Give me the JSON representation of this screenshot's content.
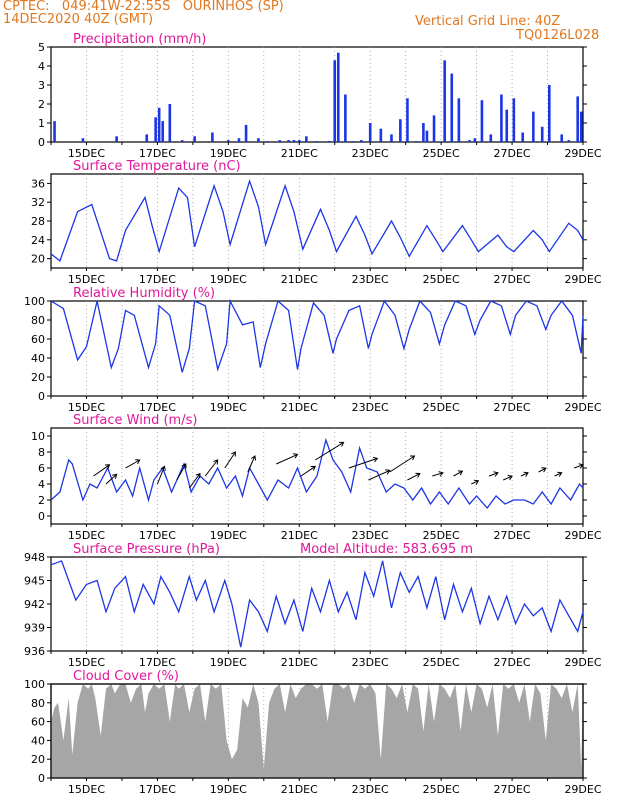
{
  "header": {
    "line1": "CPTEC:   049:41W-22:55S   OURINHOS (SP)",
    "line2": "14DEC2020 40Z (GMT)",
    "grid_note": "Vertical Grid Line: 40Z",
    "code": "TQ0126L028"
  },
  "x_ticks": [
    "15DEC",
    "17DEC",
    "19DEC",
    "21DEC",
    "23DEC",
    "25DEC",
    "27DEC",
    "29DEC"
  ],
  "colors": {
    "header": "#e07820",
    "title": "#e0189a",
    "series": "#1c36e6",
    "cloud": "#a6a6a6"
  },
  "chart_data": [
    {
      "id": "precip",
      "type": "bar",
      "title": "Precipitation (mm/h)",
      "ylim": [
        0,
        5
      ],
      "yticks": [
        "0",
        "1",
        "2",
        "3",
        "4",
        "5"
      ],
      "xlim": [
        14.0,
        29.0
      ],
      "x": [
        14.1,
        14.9,
        15.85,
        16.7,
        16.95,
        17.05,
        17.15,
        17.35,
        17.7,
        18.05,
        18.55,
        19.0,
        19.3,
        19.5,
        19.85,
        20.1,
        20.45,
        20.7,
        20.85,
        21.0,
        21.2,
        21.5,
        21.85,
        22.0,
        22.1,
        22.3,
        22.5,
        22.75,
        23.0,
        23.3,
        23.6,
        23.85,
        24.05,
        24.3,
        24.5,
        24.6,
        24.8,
        25.1,
        25.3,
        25.5,
        25.8,
        25.95,
        26.15,
        26.4,
        26.7,
        26.85,
        27.05,
        27.3,
        27.6,
        27.85,
        28.05,
        28.4,
        28.6,
        28.85,
        28.95
      ],
      "values": [
        1.1,
        0.2,
        0.3,
        0.4,
        1.3,
        1.8,
        1.1,
        2.0,
        0.1,
        0.3,
        0.5,
        0.1,
        0.2,
        0.9,
        0.2,
        0.05,
        0.1,
        0.1,
        0.1,
        0.1,
        0.3,
        0.05,
        0.05,
        4.3,
        4.7,
        2.5,
        0.05,
        0.1,
        1.0,
        0.7,
        0.4,
        1.2,
        2.3,
        0.05,
        1.0,
        0.6,
        1.4,
        4.3,
        3.6,
        2.3,
        0.1,
        0.2,
        2.2,
        0.4,
        2.5,
        1.7,
        2.3,
        0.5,
        1.6,
        0.8,
        3.0,
        0.4,
        0.1,
        2.4,
        1.6
      ]
    },
    {
      "id": "temp",
      "type": "line",
      "title": "Surface Temperature (nC)",
      "ylim": [
        18,
        38
      ],
      "yticks": [
        "20",
        "24",
        "28",
        "32",
        "36"
      ],
      "xlim": [
        14.0,
        29.0
      ],
      "x": [
        14.0,
        14.25,
        14.75,
        15.15,
        15.65,
        15.85,
        16.1,
        16.65,
        16.85,
        17.05,
        17.6,
        17.85,
        18.05,
        18.6,
        18.85,
        19.05,
        19.6,
        19.85,
        20.05,
        20.6,
        20.85,
        21.1,
        21.6,
        21.85,
        22.05,
        22.6,
        22.85,
        23.05,
        23.6,
        23.85,
        24.1,
        24.6,
        24.85,
        25.05,
        25.6,
        25.85,
        26.05,
        26.6,
        26.85,
        27.05,
        27.6,
        27.85,
        28.05,
        28.6,
        28.85,
        29.0
      ],
      "values": [
        21,
        19.5,
        30,
        31.5,
        20,
        19.5,
        26,
        33,
        27,
        21.5,
        35,
        33,
        22.5,
        35.5,
        30,
        23,
        36.5,
        31,
        23,
        35.5,
        30,
        22,
        30.5,
        26,
        21.5,
        29,
        25,
        21,
        28,
        24.5,
        20.5,
        27,
        24,
        21.5,
        27,
        24,
        21.5,
        25,
        22.5,
        21.5,
        26,
        24,
        21.5,
        27.5,
        26,
        24
      ]
    },
    {
      "id": "rh",
      "type": "line",
      "title": "Relative Humidity (%)",
      "ylim": [
        0,
        100
      ],
      "yticks": [
        "0",
        "20",
        "40",
        "60",
        "80",
        "100"
      ],
      "xlim": [
        14.0,
        29.0
      ],
      "x": [
        14.0,
        14.35,
        14.75,
        15.0,
        15.3,
        15.7,
        15.9,
        16.1,
        16.35,
        16.75,
        16.95,
        17.05,
        17.35,
        17.7,
        17.9,
        18.05,
        18.35,
        18.7,
        18.95,
        19.05,
        19.4,
        19.7,
        19.9,
        20.05,
        20.4,
        20.7,
        20.95,
        21.05,
        21.4,
        21.7,
        21.95,
        22.05,
        22.4,
        22.7,
        22.95,
        23.05,
        23.4,
        23.7,
        23.95,
        24.1,
        24.4,
        24.7,
        24.95,
        25.1,
        25.4,
        25.7,
        25.95,
        26.1,
        26.4,
        26.7,
        26.95,
        27.1,
        27.4,
        27.7,
        27.95,
        28.1,
        28.4,
        28.7,
        28.95,
        29.0
      ],
      "values": [
        100,
        92,
        38,
        52,
        100,
        30,
        50,
        90,
        85,
        30,
        55,
        95,
        85,
        25,
        50,
        100,
        95,
        28,
        55,
        100,
        75,
        78,
        30,
        55,
        100,
        90,
        28,
        50,
        98,
        85,
        45,
        60,
        90,
        95,
        50,
        65,
        100,
        85,
        50,
        70,
        100,
        88,
        55,
        75,
        100,
        95,
        65,
        80,
        100,
        95,
        65,
        85,
        100,
        95,
        70,
        85,
        100,
        85,
        45,
        85
      ]
    },
    {
      "id": "wind",
      "type": "line",
      "title": "Surface Wind (m/s)",
      "ylim": [
        -1,
        11
      ],
      "yticks": [
        "0",
        "2",
        "4",
        "6",
        "8",
        "10"
      ],
      "xlim": [
        14.0,
        29.0
      ],
      "x": [
        14.0,
        14.25,
        14.5,
        14.6,
        14.9,
        15.1,
        15.3,
        15.6,
        15.85,
        16.1,
        16.3,
        16.5,
        16.75,
        16.9,
        17.15,
        17.4,
        17.75,
        17.95,
        18.2,
        18.45,
        18.7,
        18.95,
        19.2,
        19.4,
        19.6,
        19.85,
        20.1,
        20.4,
        20.7,
        20.95,
        21.2,
        21.5,
        21.75,
        21.95,
        22.2,
        22.45,
        22.7,
        22.9,
        23.2,
        23.45,
        23.7,
        23.95,
        24.2,
        24.45,
        24.7,
        24.95,
        25.2,
        25.5,
        25.8,
        26.0,
        26.3,
        26.55,
        26.8,
        27.05,
        27.35,
        27.6,
        27.85,
        28.1,
        28.35,
        28.65,
        28.9,
        29.0
      ],
      "values": [
        2,
        3,
        7,
        6.5,
        2,
        4,
        3.5,
        6,
        3,
        4.5,
        2.5,
        6,
        2,
        4.5,
        6,
        3,
        6.5,
        3,
        5,
        4,
        6,
        3.5,
        5,
        2.5,
        6,
        4,
        2,
        4.5,
        3.5,
        6,
        3,
        5,
        9.5,
        7,
        5.5,
        3,
        8.5,
        6,
        5.5,
        3,
        4,
        3.5,
        2,
        3.5,
        1.5,
        3,
        1.5,
        3.5,
        1.5,
        2.5,
        1,
        2.5,
        1.5,
        2,
        2,
        1.5,
        3,
        1.5,
        3.5,
        2,
        4,
        3.5
      ],
      "vectors": [
        [
          15.2,
          5.0,
          0.45,
          0.35
        ],
        [
          15.55,
          4.0,
          0.3,
          0.3
        ],
        [
          16.1,
          6.0,
          0.4,
          0.25
        ],
        [
          17.0,
          4.0,
          0.2,
          0.55
        ],
        [
          17.55,
          4.5,
          0.25,
          0.5
        ],
        [
          17.9,
          3.5,
          0.3,
          0.45
        ],
        [
          18.35,
          5.0,
          0.35,
          0.5
        ],
        [
          18.9,
          6.0,
          0.3,
          0.5
        ],
        [
          19.55,
          5.5,
          0.2,
          0.5
        ],
        [
          20.35,
          6.5,
          0.6,
          0.3
        ],
        [
          21.05,
          5.0,
          0.4,
          0.3
        ],
        [
          21.45,
          7.0,
          0.8,
          0.55
        ],
        [
          22.4,
          6.0,
          0.8,
          0.3
        ],
        [
          22.95,
          4.5,
          0.6,
          0.3
        ],
        [
          23.55,
          5.5,
          0.7,
          0.5
        ],
        [
          24.05,
          4.5,
          0.35,
          0.2
        ],
        [
          24.75,
          5.0,
          0.3,
          0.1
        ],
        [
          25.35,
          5.0,
          0.25,
          0.15
        ],
        [
          25.85,
          4.0,
          0.2,
          0.1
        ],
        [
          26.35,
          5.0,
          0.25,
          0.1
        ],
        [
          26.75,
          4.5,
          0.25,
          0.12
        ],
        [
          27.25,
          5.0,
          0.2,
          0.1
        ],
        [
          27.75,
          5.5,
          0.2,
          0.12
        ],
        [
          28.2,
          5.0,
          0.2,
          0.1
        ],
        [
          28.75,
          6.0,
          0.25,
          0.1
        ]
      ]
    },
    {
      "id": "pressure",
      "type": "line",
      "title": "Surface Pressure (hPa)",
      "note": "Model Altitude: 583.695 m",
      "ylim": [
        936,
        948
      ],
      "yticks": [
        "936",
        "939",
        "942",
        "945",
        "948"
      ],
      "xlim": [
        14.0,
        29.0
      ],
      "x": [
        14.0,
        14.3,
        14.7,
        15.0,
        15.3,
        15.55,
        15.8,
        16.1,
        16.35,
        16.6,
        16.9,
        17.1,
        17.35,
        17.6,
        17.9,
        18.1,
        18.35,
        18.6,
        18.9,
        19.1,
        19.35,
        19.6,
        19.85,
        20.1,
        20.35,
        20.6,
        20.85,
        21.1,
        21.35,
        21.6,
        21.85,
        22.1,
        22.35,
        22.6,
        22.85,
        23.1,
        23.35,
        23.6,
        23.85,
        24.1,
        24.35,
        24.6,
        24.85,
        25.1,
        25.35,
        25.6,
        25.85,
        26.1,
        26.35,
        26.6,
        26.85,
        27.1,
        27.35,
        27.6,
        27.85,
        28.1,
        28.35,
        28.6,
        28.85,
        29.0
      ],
      "values": [
        947,
        947.5,
        942.5,
        944.5,
        945,
        941,
        944,
        945.5,
        941,
        944.5,
        942,
        945.5,
        943.5,
        941,
        945.5,
        942.5,
        945,
        941,
        945,
        942,
        936.5,
        942.5,
        941,
        938.5,
        943,
        939.5,
        942.5,
        938.5,
        944,
        941,
        945,
        941,
        943.5,
        940,
        946,
        943,
        947.5,
        941.5,
        946,
        943.5,
        945.5,
        941.5,
        945.5,
        940,
        944.5,
        941,
        944,
        939.5,
        943,
        940,
        943,
        939.5,
        942,
        940.5,
        941.5,
        938.5,
        942.5,
        940.5,
        938.5,
        941
      ]
    },
    {
      "id": "cloud",
      "type": "area",
      "title": "Cloud Cover (%)",
      "ylim": [
        0,
        100
      ],
      "yticks": [
        "0",
        "20",
        "40",
        "60",
        "80",
        "100"
      ],
      "xlim": [
        14.0,
        29.0
      ],
      "x": [
        14.0,
        14.1,
        14.2,
        14.35,
        14.5,
        14.6,
        14.75,
        14.9,
        15.05,
        15.15,
        15.25,
        15.4,
        15.55,
        15.7,
        15.8,
        15.95,
        16.1,
        16.25,
        16.4,
        16.55,
        16.65,
        16.75,
        16.9,
        17.05,
        17.2,
        17.35,
        17.5,
        17.6,
        17.75,
        17.9,
        18.05,
        18.2,
        18.35,
        18.5,
        18.65,
        18.8,
        18.95,
        19.1,
        19.25,
        19.4,
        19.55,
        19.7,
        19.85,
        20.0,
        20.15,
        20.3,
        20.45,
        20.6,
        20.75,
        20.9,
        21.05,
        21.2,
        21.35,
        21.5,
        21.65,
        21.8,
        21.95,
        22.1,
        22.25,
        22.4,
        22.55,
        22.7,
        22.85,
        23.0,
        23.15,
        23.3,
        23.45,
        23.6,
        23.75,
        23.9,
        24.05,
        24.2,
        24.35,
        24.5,
        24.65,
        24.8,
        24.95,
        25.1,
        25.25,
        25.4,
        25.55,
        25.7,
        25.85,
        26.0,
        26.15,
        26.3,
        26.45,
        26.6,
        26.75,
        26.9,
        27.05,
        27.2,
        27.35,
        27.5,
        27.65,
        27.8,
        27.95,
        28.1,
        28.25,
        28.4,
        28.55,
        28.7,
        28.85,
        28.95,
        29.0
      ],
      "values": [
        60,
        75,
        80,
        40,
        85,
        25,
        80,
        100,
        95,
        100,
        85,
        45,
        95,
        100,
        90,
        100,
        100,
        80,
        95,
        100,
        70,
        90,
        100,
        95,
        100,
        60,
        100,
        95,
        100,
        70,
        95,
        100,
        60,
        100,
        95,
        100,
        40,
        20,
        30,
        85,
        75,
        100,
        80,
        10,
        80,
        95,
        100,
        70,
        100,
        85,
        95,
        100,
        100,
        95,
        100,
        60,
        100,
        100,
        95,
        100,
        80,
        100,
        95,
        100,
        90,
        20,
        100,
        95,
        85,
        100,
        70,
        100,
        95,
        50,
        100,
        60,
        100,
        95,
        85,
        100,
        50,
        100,
        70,
        100,
        95,
        75,
        100,
        45,
        100,
        95,
        100,
        80,
        100,
        60,
        100,
        90,
        40,
        100,
        95,
        85,
        100,
        70,
        100,
        10,
        95
      ]
    }
  ]
}
